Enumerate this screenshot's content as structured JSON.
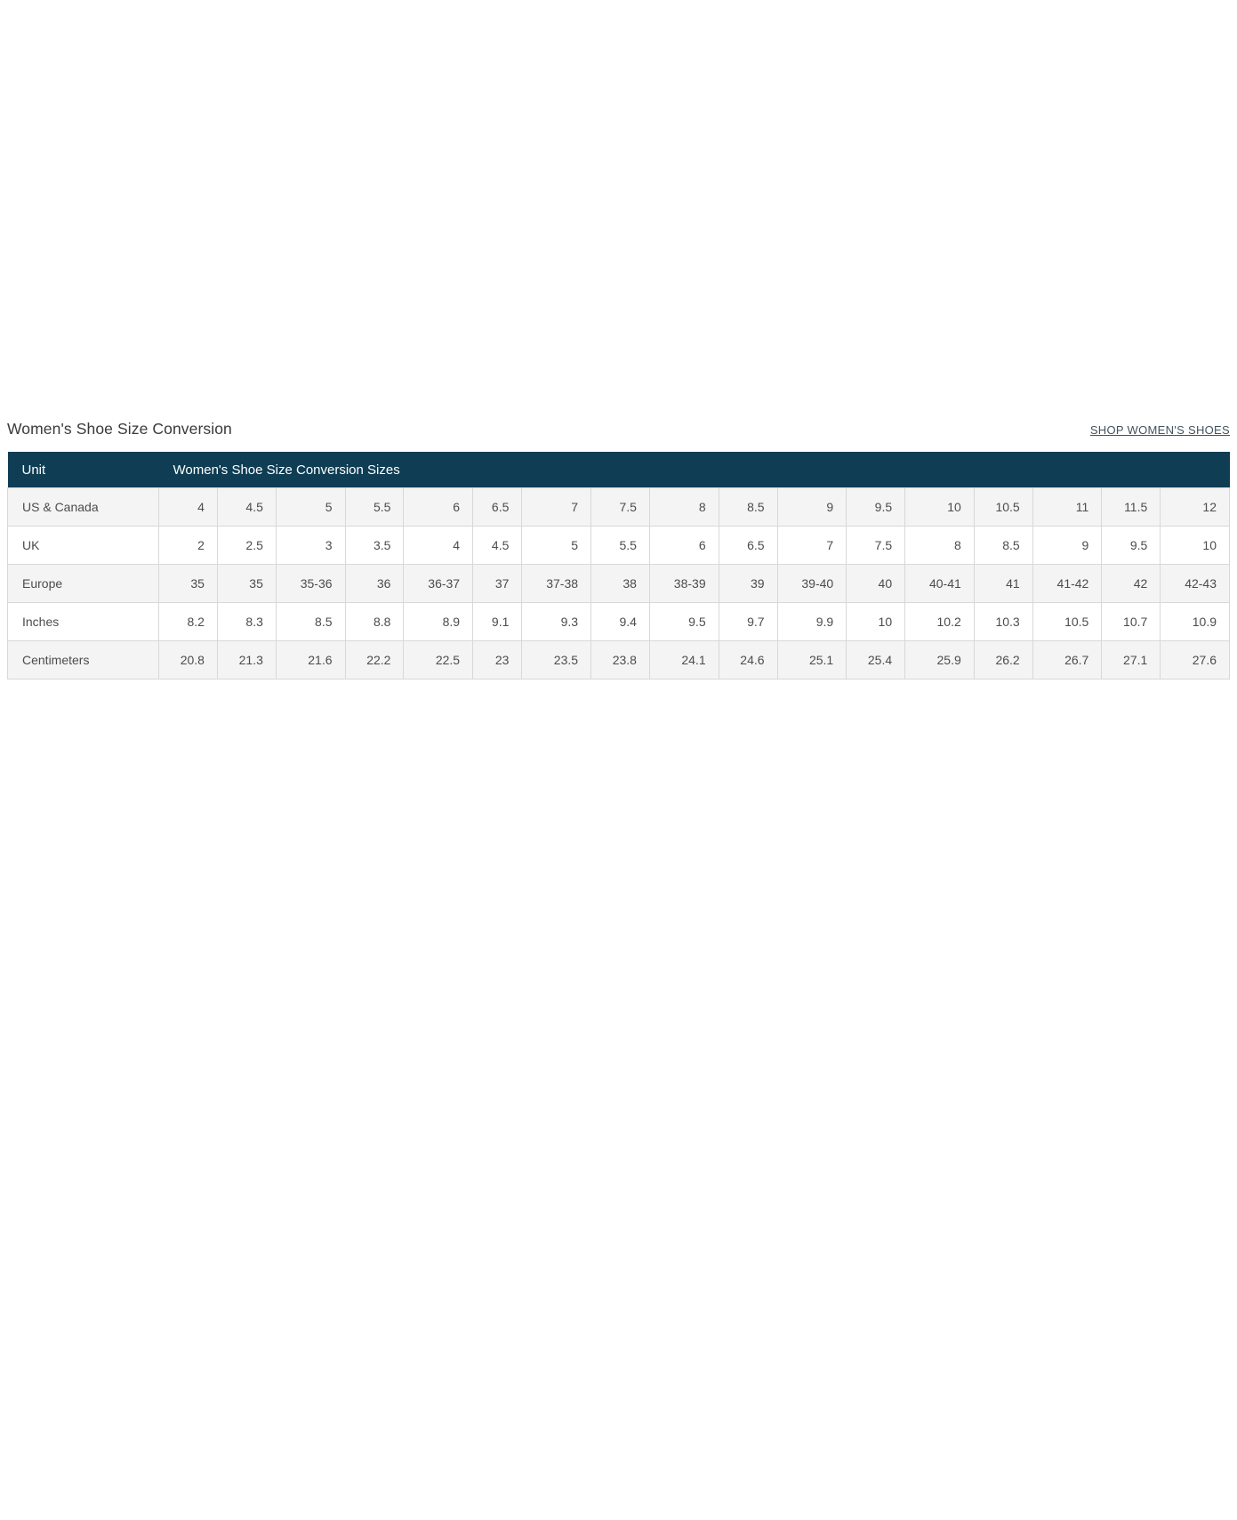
{
  "page": {
    "title": "Women's Shoe Size Conversion",
    "shop_link_label": "SHOP WOMEN'S SHOES"
  },
  "table": {
    "header": {
      "unit_label": "Unit",
      "sizes_label": "Women's Shoe Size Conversion Sizes"
    },
    "rows": [
      {
        "label": "US & Canada",
        "values": [
          "4",
          "4.5",
          "5",
          "5.5",
          "6",
          "6.5",
          "7",
          "7.5",
          "8",
          "8.5",
          "9",
          "9.5",
          "10",
          "10.5",
          "11",
          "11.5",
          "12"
        ]
      },
      {
        "label": "UK",
        "values": [
          "2",
          "2.5",
          "3",
          "3.5",
          "4",
          "4.5",
          "5",
          "5.5",
          "6",
          "6.5",
          "7",
          "7.5",
          "8",
          "8.5",
          "9",
          "9.5",
          "10"
        ]
      },
      {
        "label": "Europe",
        "values": [
          "35",
          "35",
          "35-36",
          "36",
          "36-37",
          "37",
          "37-38",
          "38",
          "38-39",
          "39",
          "39-40",
          "40",
          "40-41",
          "41",
          "41-42",
          "42",
          "42-43"
        ]
      },
      {
        "label": "Inches",
        "values": [
          "8.2",
          "8.3",
          "8.5",
          "8.8",
          "8.9",
          "9.1",
          "9.3",
          "9.4",
          "9.5",
          "9.7",
          "9.9",
          "10",
          "10.2",
          "10.3",
          "10.5",
          "10.7",
          "10.9"
        ]
      },
      {
        "label": "Centimeters",
        "values": [
          "20.8",
          "21.3",
          "21.6",
          "22.2",
          "22.5",
          "23",
          "23.5",
          "23.8",
          "24.1",
          "24.6",
          "25.1",
          "25.4",
          "25.9",
          "26.2",
          "26.7",
          "27.1",
          "27.6"
        ]
      }
    ]
  },
  "colors": {
    "header_bg": "#0e3d54",
    "row_alt_bg": "#f4f4f4",
    "border": "#d8d8d8",
    "link": "#42525e"
  }
}
